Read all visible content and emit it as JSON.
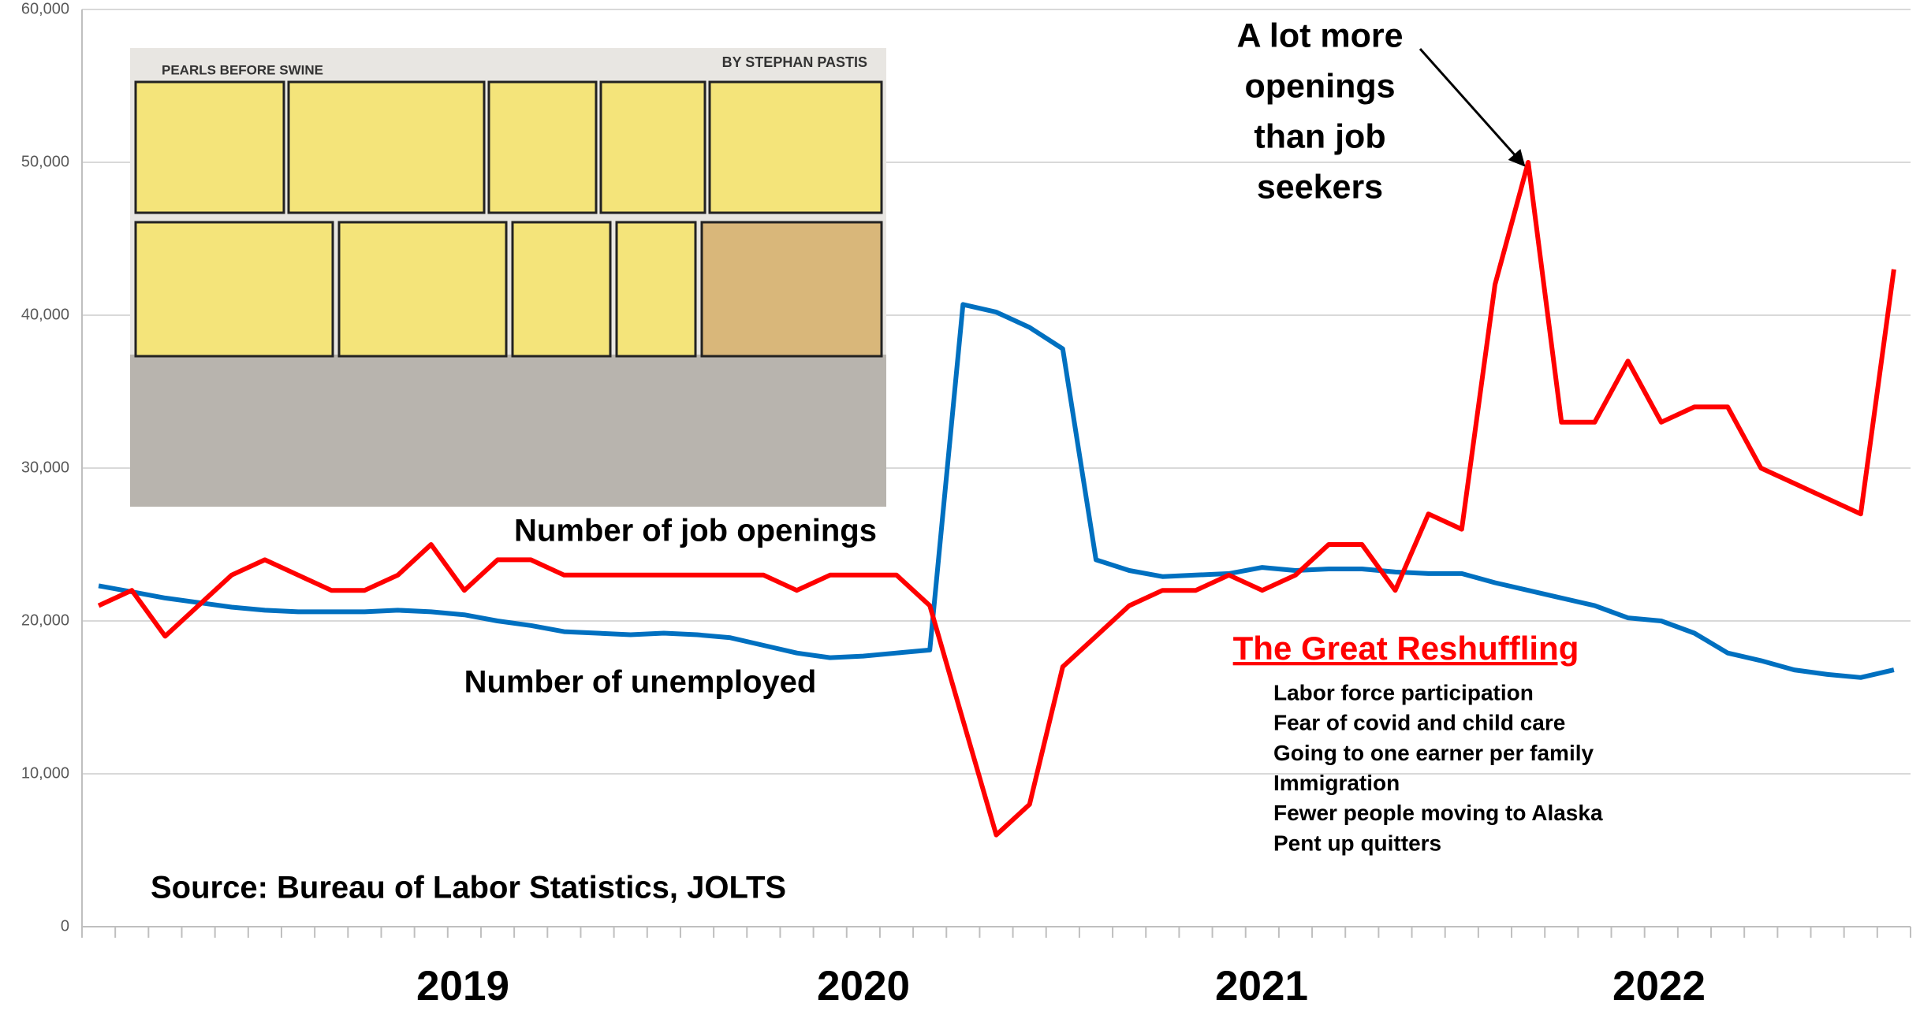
{
  "chart_data": {
    "type": "line",
    "categories": [
      null,
      null,
      null,
      null,
      null,
      null,
      null,
      null,
      null,
      null,
      null,
      null,
      null,
      null,
      null,
      null,
      null,
      null,
      null,
      null,
      null,
      null,
      null,
      null,
      null,
      null,
      null,
      null,
      null,
      null,
      null,
      null,
      null,
      null,
      null,
      null,
      null,
      null,
      null,
      null,
      null,
      null,
      null,
      null,
      null,
      null,
      null,
      null,
      null,
      null,
      null,
      null,
      null,
      null,
      null
    ],
    "year_labels": [
      "2019",
      "2020",
      "2021",
      "2022"
    ],
    "series": [
      {
        "name": "Number of job openings",
        "color": "#ff0000",
        "values": [
          21000,
          22000,
          19000,
          21000,
          23000,
          24000,
          23000,
          22000,
          22000,
          23000,
          25000,
          22000,
          24000,
          24000,
          23000,
          23000,
          23000,
          23000,
          23000,
          23000,
          23000,
          22000,
          23000,
          23000,
          23000,
          21000,
          13500,
          6000,
          8000,
          17000,
          19000,
          21000,
          22000,
          22000,
          23000,
          22000,
          23000,
          25000,
          25000,
          22000,
          27000,
          26000,
          42000,
          50000,
          33000,
          33000,
          37000,
          33000,
          34000,
          34000,
          30000,
          29000,
          28000,
          27000,
          43000
        ]
      },
      {
        "name": "Number of unemployed",
        "color": "#0070c0",
        "values": [
          22300,
          21900,
          21500,
          21200,
          20900,
          20700,
          20600,
          20600,
          20600,
          20700,
          20600,
          20400,
          20000,
          19700,
          19300,
          19200,
          19100,
          19200,
          19100,
          18900,
          18400,
          17900,
          17600,
          17700,
          17900,
          18100,
          40700,
          40200,
          39200,
          37800,
          24000,
          23300,
          22900,
          23000,
          23100,
          23500,
          23300,
          23400,
          23400,
          23200,
          23100,
          23100,
          22500,
          22000,
          21500,
          21000,
          20200,
          20000,
          19200,
          17900,
          17400,
          16800,
          16500,
          16300,
          16800
        ]
      }
    ],
    "ylim": [
      0,
      60000
    ],
    "yticks": [
      0,
      {
        "value": 10000,
        "label": "10,000"
      },
      {
        "value": 20000,
        "label": "20,000"
      },
      {
        "value": 30000,
        "label": "30,000"
      },
      {
        "value": 40000,
        "label": "40,000"
      },
      {
        "value": 50000,
        "label": "50,000"
      },
      {
        "value": 60000,
        "label": "60,000"
      }
    ],
    "grid": true,
    "annotations": {
      "peak": [
        "A lot more",
        "openings",
        "than job",
        "seekers"
      ],
      "reshuffling_title": "The Great Reshuffling",
      "reshuffling_items": [
        "Labor force participation",
        "Fear of covid and child care",
        "Going to one earner per family",
        "Immigration",
        "Fewer people moving to Alaska",
        "Pent up quitters"
      ],
      "source": "Source: Bureau of Labor Statistics, JOLTS"
    },
    "comic": {
      "title": "PEARLS BEFORE SWINE",
      "author": "BY STEPHAN PASTIS"
    }
  }
}
